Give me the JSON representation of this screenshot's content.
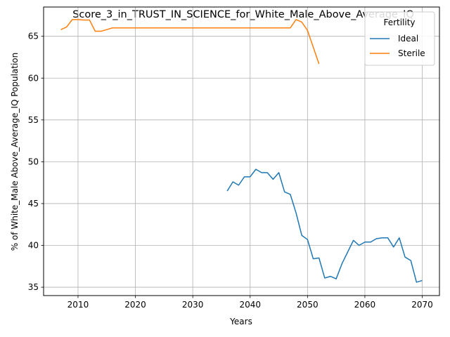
{
  "chart_data": {
    "type": "line",
    "title": "Score_3_in_TRUST_IN_SCIENCE_for_White_Male_Above_Average_IQ",
    "xlabel": "Years",
    "ylabel": "% of White_Male Above_Average_IQ Population",
    "xlim": [
      2004,
      2073
    ],
    "ylim": [
      34,
      68.5
    ],
    "xticks": [
      2010,
      2020,
      2030,
      2040,
      2050,
      2060,
      2070
    ],
    "yticks": [
      35,
      40,
      45,
      50,
      55,
      60,
      65
    ],
    "grid": true,
    "legend": {
      "title": "Fertility",
      "position": "top-right"
    },
    "series": [
      {
        "name": "Ideal",
        "color": "#1f77b4",
        "x": [
          2036,
          2037,
          2038,
          2039,
          2040,
          2041,
          2042,
          2043,
          2044,
          2045,
          2046,
          2047,
          2048,
          2049,
          2050,
          2051,
          2052,
          2053,
          2054,
          2055,
          2056,
          2057,
          2058,
          2059,
          2060,
          2061,
          2062,
          2063,
          2064,
          2065,
          2066,
          2067,
          2068,
          2069,
          2070
        ],
        "y": [
          46.5,
          47.6,
          47.2,
          48.2,
          48.2,
          49.1,
          48.7,
          48.7,
          47.9,
          48.7,
          46.4,
          46.1,
          43.9,
          41.2,
          40.7,
          38.4,
          38.5,
          36.1,
          36.3,
          36.0,
          37.8,
          39.2,
          40.6,
          40.0,
          40.4,
          40.4,
          40.8,
          40.9,
          40.9,
          39.8,
          40.9,
          38.6,
          38.2,
          35.6,
          35.8
        ]
      },
      {
        "name": "Sterile",
        "color": "#ff7f0e",
        "x": [
          2007,
          2008,
          2009,
          2010,
          2011,
          2012,
          2013,
          2014,
          2015,
          2016,
          2017,
          2018,
          2019,
          2020,
          2021,
          2022,
          2023,
          2024,
          2025,
          2026,
          2027,
          2028,
          2029,
          2030,
          2031,
          2032,
          2033,
          2034,
          2035,
          2036,
          2037,
          2038,
          2039,
          2040,
          2041,
          2042,
          2043,
          2044,
          2045,
          2046,
          2047,
          2048,
          2049,
          2050,
          2051,
          2052
        ],
        "y": [
          65.8,
          66.1,
          67.0,
          67.0,
          66.95,
          66.95,
          65.6,
          65.6,
          65.8,
          66.0,
          66.0,
          66.0,
          66.0,
          66.0,
          66.0,
          66.0,
          66.0,
          66.0,
          66.0,
          66.0,
          66.0,
          66.0,
          66.0,
          66.0,
          66.0,
          66.0,
          66.0,
          66.0,
          66.0,
          66.0,
          66.0,
          66.0,
          66.0,
          66.0,
          66.0,
          66.0,
          66.0,
          66.0,
          66.0,
          66.0,
          66.0,
          67.0,
          66.7,
          65.7,
          63.7,
          61.7
        ]
      }
    ]
  }
}
